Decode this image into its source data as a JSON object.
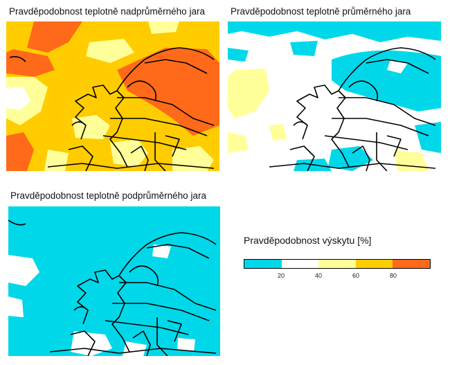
{
  "panels": [
    {
      "title": "Pravděpodobnost teplotně nadprůměrného jara"
    },
    {
      "title": "Pravděpodobnost teplotně průměrného jara"
    },
    {
      "title": "Pravděpodobnost teplotně podprůměrného jara"
    }
  ],
  "legend": {
    "title": "Pravděpodobnost výskytu [%]",
    "ticks": [
      "20",
      "40",
      "60",
      "80"
    ],
    "tick_values": [
      20,
      40,
      60,
      80
    ],
    "range": [
      0,
      100
    ],
    "colors": [
      "#00d8ea",
      "#ffffff",
      "#ffff99",
      "#ffcc00",
      "#ff6a1a"
    ]
  },
  "colors": {
    "cyan": "#00d8ea",
    "white": "#ffffff",
    "lightyellow": "#ffff99",
    "yellow": "#ffcc00",
    "orange": "#ff6a1a",
    "border": "#000000"
  }
}
